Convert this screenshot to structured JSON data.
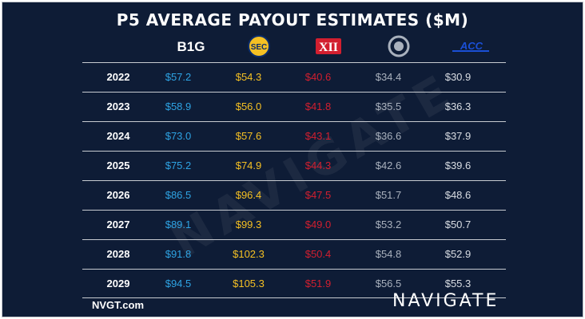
{
  "title": "P5 AVERAGE PAYOUT ESTIMATES ($M)",
  "footer": {
    "site": "NVGT.com",
    "brand": "NAVIGATE"
  },
  "watermark": "NAVIGATE",
  "logos": [
    {
      "label": "B1G",
      "icon": "big-ten-logo",
      "color": "#ffffff"
    },
    {
      "label": "SEC",
      "icon": "sec-logo",
      "color": "#f5c023"
    },
    {
      "label": "XII",
      "icon": "big-12-logo",
      "color": "#d21f2f"
    },
    {
      "label": "",
      "icon": "pac-12-logo",
      "color": "#a9b1bd"
    },
    {
      "label": "ACC",
      "icon": "acc-logo",
      "color": "#1a4fd6"
    }
  ],
  "chart_data": {
    "type": "table",
    "title": "P5 AVERAGE PAYOUT ESTIMATES ($M)",
    "columns": [
      "B1G",
      "SEC",
      "XII",
      "Pac-12",
      "ACC"
    ],
    "column_colors": [
      "#2ea3e3",
      "#f5c023",
      "#d21f2f",
      "#a9b1bd",
      "#d9dde3"
    ],
    "rows": [
      {
        "year": "2022",
        "values": [
          "$57.2",
          "$54.3",
          "$40.6",
          "$34.4",
          "$30.9"
        ]
      },
      {
        "year": "2023",
        "values": [
          "$58.9",
          "$56.0",
          "$41.8",
          "$35.5",
          "$36.3"
        ]
      },
      {
        "year": "2024",
        "values": [
          "$73.0",
          "$57.6",
          "$43.1",
          "$36.6",
          "$37.9"
        ]
      },
      {
        "year": "2025",
        "values": [
          "$75.2",
          "$74.9",
          "$44.3",
          "$42.6",
          "$39.6"
        ]
      },
      {
        "year": "2026",
        "values": [
          "$86.5",
          "$96.4",
          "$47.5",
          "$51.7",
          "$48.6"
        ]
      },
      {
        "year": "2027",
        "values": [
          "$89.1",
          "$99.3",
          "$49.0",
          "$53.2",
          "$50.7"
        ]
      },
      {
        "year": "2028",
        "values": [
          "$91.8",
          "$102.3",
          "$50.4",
          "$54.8",
          "$52.9"
        ]
      },
      {
        "year": "2029",
        "values": [
          "$94.5",
          "$105.3",
          "$51.9",
          "$56.5",
          "$55.3"
        ]
      }
    ]
  }
}
